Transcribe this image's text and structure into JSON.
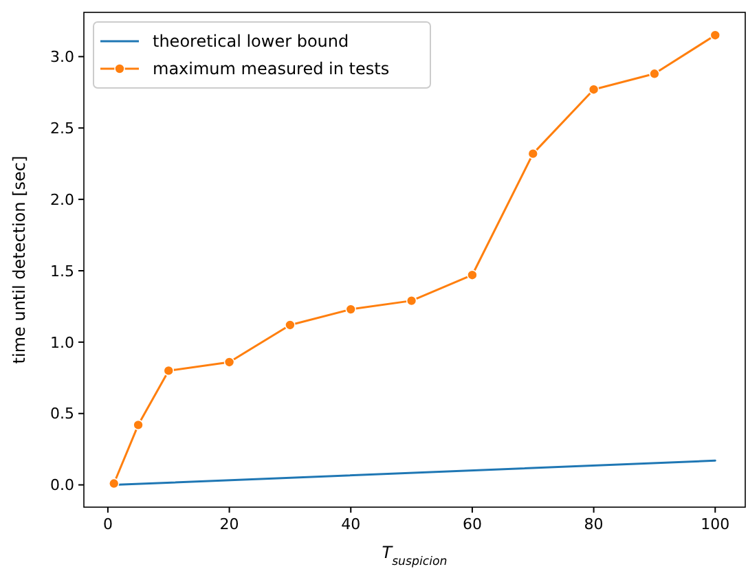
{
  "chart_data": {
    "type": "line",
    "xlabel": "T$_{suspicion}$",
    "ylabel": "time until detection [sec]",
    "xlim": [
      -3.95,
      104.95
    ],
    "ylim": [
      -0.156,
      3.31
    ],
    "xticks": [
      0,
      20,
      40,
      60,
      80,
      100
    ],
    "yticks": [
      {
        "value": 0,
        "label": "0.0"
      },
      {
        "value": 0.5,
        "label": "0.5"
      },
      {
        "value": 1,
        "label": "1.0"
      },
      {
        "value": 1.5,
        "label": "1.5"
      },
      {
        "value": 2,
        "label": "2.0"
      },
      {
        "value": 2.5,
        "label": "2.5"
      },
      {
        "value": 3,
        "label": "3.0"
      }
    ],
    "legend": "top left",
    "grid": false,
    "series": [
      {
        "name": "theoretical lower bound",
        "color": "#1f77b4",
        "marker": "none",
        "x": [
          1,
          100
        ],
        "values": [
          0,
          0.17
        ]
      },
      {
        "name": "maximum measured in tests",
        "color": "#ff7f0e",
        "marker": "circle",
        "x": [
          1,
          5,
          10,
          20,
          30,
          40,
          50,
          60,
          70,
          80,
          90,
          100
        ],
        "values": [
          0.01,
          0.42,
          0.8,
          0.86,
          1.12,
          1.23,
          1.29,
          1.47,
          2.32,
          2.77,
          2.88,
          3.15
        ]
      }
    ]
  }
}
